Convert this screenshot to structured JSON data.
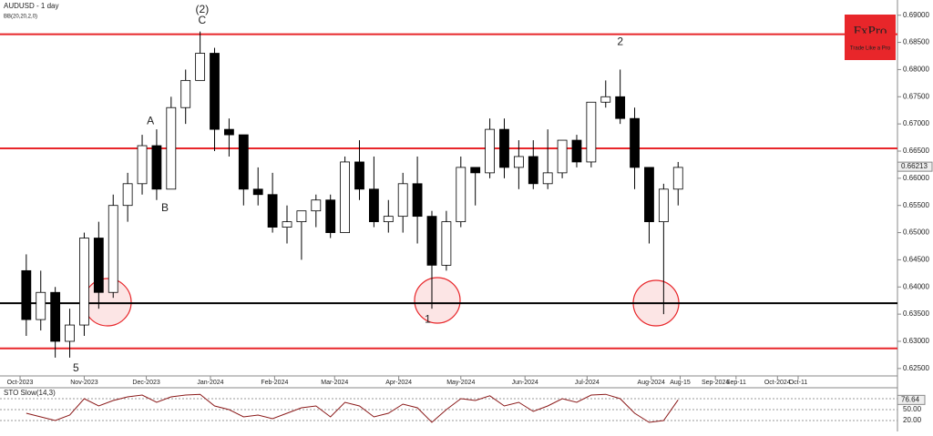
{
  "chart_data": {
    "type": "candlestick",
    "title": "AUDUSD - 1 day",
    "subtitle": "BB(20,20,2,0)",
    "logo": "FxPro",
    "logo_tagline": "Trade Like a Pro",
    "xlim": [
      -9.7,
      424
    ],
    "ylim": [
      0.6238,
      0.6928
    ],
    "xticks": [
      {
        "value": 0,
        "label": "Oct-2023"
      },
      {
        "value": 31,
        "label": "Nov-2023"
      },
      {
        "value": 61,
        "label": "Dec-2023"
      },
      {
        "value": 92,
        "label": "Jan-2024"
      },
      {
        "value": 123,
        "label": "Feb-2024"
      },
      {
        "value": 152,
        "label": "Mar-2024"
      },
      {
        "value": 183,
        "label": "Apr-2024"
      },
      {
        "value": 213,
        "label": "May-2024"
      },
      {
        "value": 244,
        "label": "Jun-2024"
      },
      {
        "value": 274,
        "label": "Jul-2024"
      },
      {
        "value": 305,
        "label": "Aug-2024"
      },
      {
        "value": 319,
        "label": "Aug-15"
      },
      {
        "value": 336,
        "label": "Sep-2024"
      },
      {
        "value": 346,
        "label": "Sep-11"
      },
      {
        "value": 366,
        "label": "Oct-2024"
      },
      {
        "value": 376,
        "label": "Oct-11"
      }
    ],
    "yticks": [
      {
        "value": 0.625,
        "label": "0.62500"
      },
      {
        "value": 0.63,
        "label": "0.63000"
      },
      {
        "value": 0.635,
        "label": "0.63500"
      },
      {
        "value": 0.64,
        "label": "0.64000"
      },
      {
        "value": 0.645,
        "label": "0.64500"
      },
      {
        "value": 0.65,
        "label": "0.65000"
      },
      {
        "value": 0.655,
        "label": "0.65500"
      },
      {
        "value": 0.66,
        "label": "0.66000"
      },
      {
        "value": 0.665,
        "label": "0.66500"
      },
      {
        "value": 0.67,
        "label": "0.67000"
      },
      {
        "value": 0.675,
        "label": "0.67500"
      },
      {
        "value": 0.68,
        "label": "0.68000"
      },
      {
        "value": 0.685,
        "label": "0.68500"
      },
      {
        "value": 0.69,
        "label": "0.69000"
      }
    ],
    "last_price": {
      "value": 0.66213,
      "label": "0.66213"
    },
    "levels": [
      {
        "value": 0.6865,
        "color": "#e8262a"
      },
      {
        "value": 0.6655,
        "color": "#e8262a"
      },
      {
        "value": 0.637,
        "color": "#000000"
      },
      {
        "value": 0.6287,
        "color": "#e8262a"
      }
    ],
    "x": [
      3,
      10,
      17,
      24,
      31,
      38,
      45,
      52,
      59,
      66,
      73,
      80,
      87,
      94,
      101,
      108,
      115,
      122,
      129,
      136,
      143,
      150,
      157,
      164,
      171,
      178,
      185,
      192,
      199,
      206,
      213,
      220,
      227,
      234,
      241,
      248,
      255,
      262,
      269,
      276,
      283,
      290,
      297,
      304,
      311,
      318
    ],
    "open": [
      0.643,
      0.634,
      0.639,
      0.63,
      0.633,
      0.649,
      0.639,
      0.655,
      0.659,
      0.666,
      0.658,
      0.673,
      0.678,
      0.683,
      0.669,
      0.668,
      0.658,
      0.657,
      0.651,
      0.652,
      0.654,
      0.656,
      0.65,
      0.663,
      0.658,
      0.652,
      0.653,
      0.659,
      0.653,
      0.644,
      0.652,
      0.662,
      0.661,
      0.669,
      0.662,
      0.664,
      0.659,
      0.661,
      0.667,
      0.663,
      0.674,
      0.675,
      0.671,
      0.662,
      0.652,
      0.658
    ],
    "high": [
      0.646,
      0.643,
      0.64,
      0.636,
      0.65,
      0.652,
      0.657,
      0.661,
      0.668,
      0.669,
      0.675,
      0.68,
      0.687,
      0.684,
      0.671,
      0.668,
      0.662,
      0.661,
      0.655,
      0.654,
      0.657,
      0.657,
      0.664,
      0.667,
      0.664,
      0.656,
      0.661,
      0.664,
      0.654,
      0.654,
      0.664,
      0.662,
      0.671,
      0.671,
      0.667,
      0.667,
      0.669,
      0.667,
      0.668,
      0.674,
      0.678,
      0.68,
      0.673,
      0.662,
      0.659,
      0.663
    ],
    "low": [
      0.631,
      0.632,
      0.627,
      0.627,
      0.631,
      0.636,
      0.638,
      0.652,
      0.657,
      0.656,
      0.658,
      0.67,
      0.678,
      0.665,
      0.664,
      0.655,
      0.655,
      0.65,
      0.648,
      0.645,
      0.651,
      0.649,
      0.65,
      0.656,
      0.651,
      0.65,
      0.65,
      0.648,
      0.636,
      0.643,
      0.651,
      0.655,
      0.66,
      0.66,
      0.658,
      0.658,
      0.658,
      0.66,
      0.662,
      0.662,
      0.673,
      0.67,
      0.658,
      0.648,
      0.635,
      0.655
    ],
    "close": [
      0.634,
      0.639,
      0.63,
      0.633,
      0.649,
      0.639,
      0.655,
      0.659,
      0.666,
      0.658,
      0.673,
      0.678,
      0.683,
      0.669,
      0.668,
      0.658,
      0.657,
      0.651,
      0.652,
      0.654,
      0.656,
      0.65,
      0.663,
      0.658,
      0.652,
      0.653,
      0.659,
      0.653,
      0.644,
      0.652,
      0.662,
      0.661,
      0.669,
      0.662,
      0.664,
      0.659,
      0.661,
      0.667,
      0.663,
      0.674,
      0.675,
      0.671,
      0.662,
      0.652,
      0.658,
      0.662
    ],
    "annotations": [
      {
        "text": "(2)",
        "x": 88,
        "y": 0.691
      },
      {
        "text": "C",
        "x": 88,
        "y": 0.689
      },
      {
        "text": "A",
        "x": 63,
        "y": 0.6705
      },
      {
        "text": "B",
        "x": 70,
        "y": 0.6545
      },
      {
        "text": "2",
        "x": 290,
        "y": 0.685
      },
      {
        "text": "5",
        "x": 27,
        "y": 0.625
      },
      {
        "text": "1",
        "x": 197,
        "y": 0.634
      }
    ],
    "stochastic": {
      "name": "STO Slow(14,3)",
      "ylim": [
        0,
        100
      ],
      "yticks": [
        {
          "value": 20,
          "label": "20.00"
        },
        {
          "value": 50,
          "label": "50.00"
        },
        {
          "value": 80,
          "label": "80.00"
        }
      ],
      "values": [
        40,
        30,
        20,
        35,
        80,
        60,
        75,
        85,
        90,
        70,
        85,
        90,
        92,
        60,
        50,
        30,
        35,
        25,
        40,
        55,
        60,
        30,
        70,
        60,
        30,
        40,
        65,
        55,
        15,
        50,
        80,
        75,
        88,
        60,
        70,
        45,
        60,
        80,
        70,
        90,
        92,
        80,
        40,
        15,
        20,
        76.64
      ],
      "value_labels_last": "76.64"
    }
  }
}
